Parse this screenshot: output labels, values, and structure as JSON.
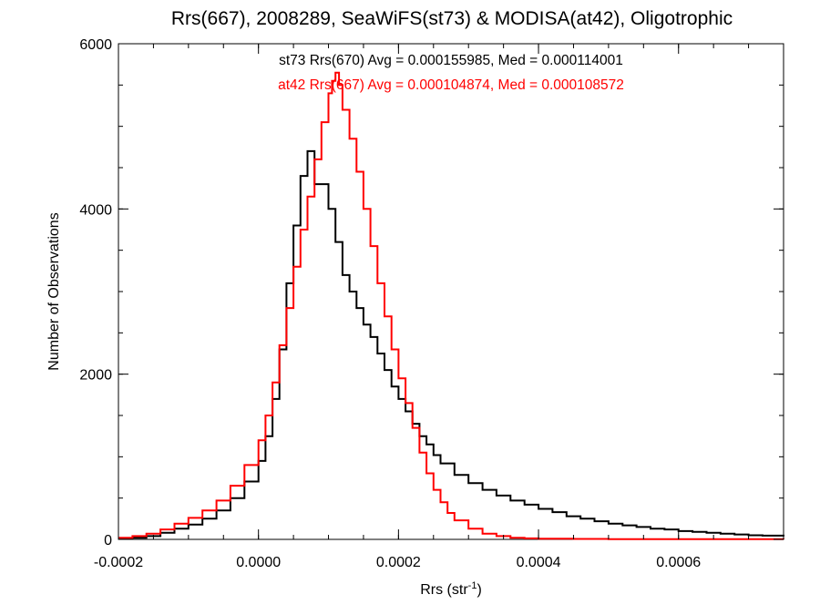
{
  "chart_data": {
    "type": "line",
    "title": "Rrs(667), 2008289, SeaWiFS(st73) & MODISA(at42), Oligotrophic",
    "xlabel": "Rrs (str",
    "xlabel_sup": "-1",
    "xlabel_end": ")",
    "ylabel": "Number of Observations",
    "xlim": [
      -0.0002,
      0.00075
    ],
    "ylim": [
      0,
      6000
    ],
    "xticks": [
      {
        "value": -0.0002,
        "label": "-0.0002"
      },
      {
        "value": 0.0,
        "label": "0.0000"
      },
      {
        "value": 0.0002,
        "label": "0.0002"
      },
      {
        "value": 0.0004,
        "label": "0.0004"
      },
      {
        "value": 0.0006,
        "label": "0.0006"
      }
    ],
    "yticks": [
      {
        "value": 0,
        "label": "0"
      },
      {
        "value": 2000,
        "label": "2000"
      },
      {
        "value": 4000,
        "label": "4000"
      },
      {
        "value": 6000,
        "label": "6000"
      }
    ],
    "grid": false,
    "series": [
      {
        "name": "st73 Rrs(670)",
        "color": "#000000",
        "x": [
          -0.0002,
          -0.00018,
          -0.00016,
          -0.00014,
          -0.00012,
          -0.0001,
          -8e-05,
          -6e-05,
          -4e-05,
          -2e-05,
          0.0,
          1e-05,
          2e-05,
          3e-05,
          4e-05,
          5e-05,
          6e-05,
          7e-05,
          8e-05,
          9e-05,
          0.0001,
          0.00011,
          0.00012,
          0.00013,
          0.00014,
          0.00015,
          0.00016,
          0.00017,
          0.00018,
          0.00019,
          0.0002,
          0.00021,
          0.00022,
          0.00023,
          0.00024,
          0.00025,
          0.00026,
          0.00028,
          0.0003,
          0.00032,
          0.00034,
          0.00036,
          0.00038,
          0.0004,
          0.00042,
          0.00044,
          0.00046,
          0.00048,
          0.0005,
          0.00052,
          0.00054,
          0.00056,
          0.00058,
          0.0006,
          0.00062,
          0.00064,
          0.00066,
          0.00068,
          0.0007,
          0.00072,
          0.00075
        ],
        "values": [
          10,
          20,
          40,
          80,
          130,
          180,
          250,
          350,
          500,
          700,
          950,
          1250,
          1700,
          2300,
          3100,
          3800,
          4400,
          4700,
          4300,
          4300,
          4000,
          3600,
          3200,
          3000,
          2800,
          2600,
          2450,
          2250,
          2050,
          1850,
          1700,
          1550,
          1400,
          1250,
          1150,
          1020,
          920,
          780,
          680,
          600,
          530,
          470,
          420,
          370,
          330,
          280,
          250,
          220,
          190,
          170,
          150,
          130,
          120,
          100,
          90,
          80,
          70,
          60,
          50,
          45,
          35
        ]
      },
      {
        "name": "at42 Rrs(667)",
        "color": "#ff0000",
        "x": [
          -0.0002,
          -0.00018,
          -0.00016,
          -0.00014,
          -0.00012,
          -0.0001,
          -8e-05,
          -6e-05,
          -4e-05,
          -2e-05,
          0.0,
          1e-05,
          2e-05,
          3e-05,
          4e-05,
          5e-05,
          6e-05,
          7e-05,
          8e-05,
          9e-05,
          0.0001,
          0.000105,
          0.00011,
          0.000115,
          0.00012,
          0.00013,
          0.00014,
          0.00015,
          0.00016,
          0.00017,
          0.00018,
          0.00019,
          0.0002,
          0.00021,
          0.00022,
          0.00023,
          0.00024,
          0.00025,
          0.00026,
          0.00027,
          0.00028,
          0.0003,
          0.00032,
          0.00034,
          0.00036,
          0.00038,
          0.0004,
          0.00045,
          0.0005,
          0.0006,
          0.00075
        ],
        "values": [
          20,
          40,
          70,
          120,
          190,
          260,
          350,
          470,
          650,
          900,
          1200,
          1500,
          1900,
          2350,
          2800,
          3300,
          3750,
          4150,
          4600,
          5050,
          5400,
          5550,
          5650,
          5500,
          5200,
          4850,
          4450,
          4000,
          3550,
          3100,
          2700,
          2300,
          1950,
          1650,
          1350,
          1050,
          800,
          600,
          450,
          320,
          230,
          130,
          70,
          40,
          20,
          12,
          8,
          5,
          3,
          2,
          1
        ]
      }
    ],
    "annotations": [
      {
        "text": "st73 Rrs(670) Avg = 0.000155985, Med = 0.000114001",
        "color": "#000000"
      },
      {
        "text": "at42 Rrs(667) Avg = 0.000104874, Med = 0.000108572",
        "color": "#ff0000"
      }
    ]
  }
}
